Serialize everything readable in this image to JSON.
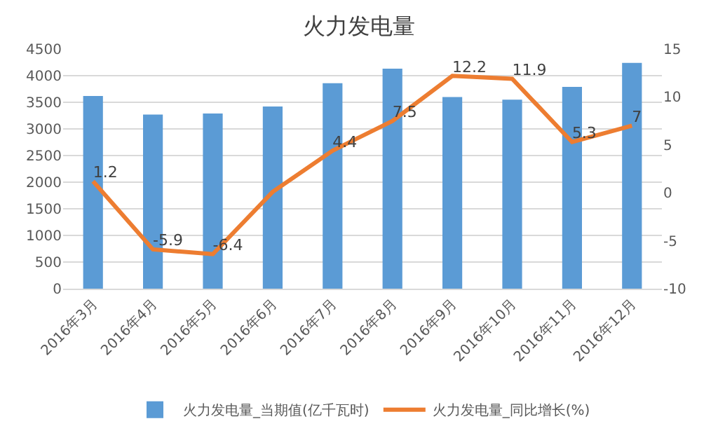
{
  "chart_data": {
    "type": "bar",
    "title": "火力发电量",
    "categories": [
      "2016年3月",
      "2016年4月",
      "2016年5月",
      "2016年6月",
      "2016年7月",
      "2016年8月",
      "2016年9月",
      "2016年10月",
      "2016年11月",
      "2016年12月"
    ],
    "series": [
      {
        "name": "火力发电量_当期值(亿千瓦时)",
        "color": "#5b9bd5",
        "values": [
          3620,
          3270,
          3290,
          3420,
          3860,
          4130,
          3600,
          3550,
          3790,
          4240
        ]
      },
      {
        "name": "火力发电量_同比增长(%)",
        "type": "line",
        "axis": "y2",
        "color": "#ed7d31",
        "values": [
          1.2,
          -5.9,
          -6.4,
          0.1,
          4.4,
          7.5,
          12.2,
          11.9,
          5.3,
          7
        ],
        "value_labels": [
          "1.2",
          "-5.9",
          "-6.4",
          null,
          "4.4",
          "7.5",
          "12.2",
          "11.9",
          "5.3",
          "7"
        ]
      }
    ],
    "ylim": [
      0,
      4500
    ],
    "yticks": [
      0,
      500,
      1000,
      1500,
      2000,
      2500,
      3000,
      3500,
      4000,
      4500
    ],
    "y2lim": [
      -10,
      15
    ],
    "y2ticks": [
      -10,
      -5,
      0,
      5,
      10,
      15
    ],
    "grid": "y",
    "legend": "bottom",
    "marker": "none",
    "line_style": "solid"
  }
}
